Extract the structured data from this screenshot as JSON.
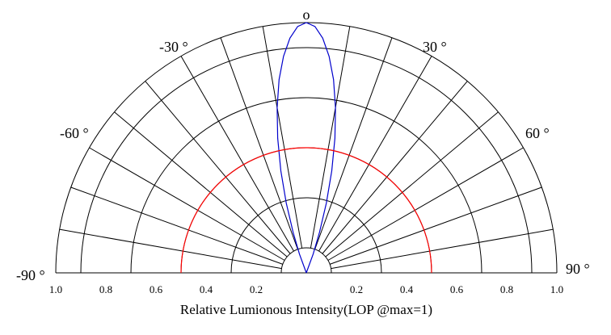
{
  "chart_data": {
    "type": "polar",
    "angle_labels": [
      {
        "angle": -90,
        "text": "-90 °"
      },
      {
        "angle": -60,
        "text": "-60 °"
      },
      {
        "angle": -30,
        "text": "-30 °"
      },
      {
        "angle": 0,
        "text": "o"
      },
      {
        "angle": 30,
        "text": "30 °"
      },
      {
        "angle": 60,
        "text": "60 °"
      },
      {
        "angle": 90,
        "text": "90 °"
      }
    ],
    "radial_ticks": [
      {
        "value": 1.0,
        "side": "left",
        "text": "1.0"
      },
      {
        "value": 0.8,
        "side": "left",
        "text": "0.8"
      },
      {
        "value": 0.6,
        "side": "left",
        "text": "0.6"
      },
      {
        "value": 0.4,
        "side": "left",
        "text": "0.4"
      },
      {
        "value": 0.2,
        "side": "left",
        "text": "0.2"
      },
      {
        "value": 0.2,
        "side": "right",
        "text": "0.2"
      },
      {
        "value": 0.4,
        "side": "right",
        "text": "0.4"
      },
      {
        "value": 0.6,
        "side": "right",
        "text": "0.6"
      },
      {
        "value": 0.8,
        "side": "right",
        "text": "0.8"
      },
      {
        "value": 1.0,
        "side": "right",
        "text": "1.0"
      }
    ],
    "xlabel": "Relative Lumionous Intensity(LOP @max=1)",
    "rlim": [
      0,
      1
    ],
    "angle_range": [
      -90,
      90
    ],
    "grid": {
      "radial_rings": [
        0.1,
        0.3,
        0.5,
        0.7,
        0.9,
        1.0
      ],
      "spoke_step_deg": 10
    },
    "series": [
      {
        "color": "#0000cc",
        "angles": [
          -90,
          -20,
          -18,
          -16,
          -14,
          -12,
          -10,
          -8,
          -6,
          -4,
          -2,
          0,
          2,
          4,
          6,
          8,
          10,
          12,
          14,
          16,
          18,
          20,
          90
        ],
        "values": [
          0,
          0.08,
          0.17,
          0.29,
          0.42,
          0.55,
          0.67,
          0.78,
          0.87,
          0.94,
          0.985,
          1.0,
          0.985,
          0.94,
          0.87,
          0.78,
          0.67,
          0.55,
          0.42,
          0.29,
          0.17,
          0.08,
          0
        ]
      },
      {
        "color": "#ff0000",
        "angles": [
          -90,
          90
        ],
        "values": [
          0.5,
          0.5
        ]
      }
    ]
  }
}
